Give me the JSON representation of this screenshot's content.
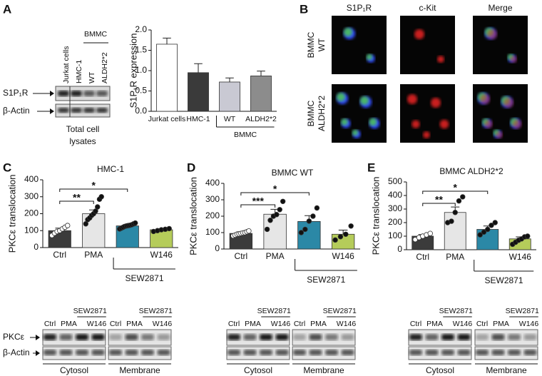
{
  "panel_letters": [
    "A",
    "B",
    "C",
    "D",
    "E"
  ],
  "panel_a": {
    "lanes": [
      "Jurkat cells",
      "HMC-1",
      "WT",
      "ALDH2*2"
    ],
    "group": "BMMC",
    "rows": [
      "S1P₁R",
      "β-Actin"
    ],
    "caption": [
      "Total cell",
      "lysates"
    ]
  },
  "panel_b": {
    "columns": [
      "S1P₁R",
      "c-Kit",
      "Merge"
    ],
    "rows": [
      [
        "BMMC",
        "WT"
      ],
      [
        "BMMC",
        "ALDH2*2"
      ]
    ]
  },
  "blots": {
    "lanes": [
      "Ctrl",
      "PMA",
      "W146"
    ],
    "group": "SEW2871",
    "rows": [
      "PKCε",
      "β-Actin"
    ],
    "fractions": [
      "Cytosol",
      "Membrane"
    ]
  },
  "chart_data": [
    {
      "type": "bar",
      "ylabel": "S1P₁R expression",
      "categories": [
        "Jurkat cells",
        "HMC-1",
        "WT",
        "ALDH2*2"
      ],
      "group_label": "BMMC",
      "values": [
        1.65,
        0.95,
        0.72,
        0.87
      ],
      "errors": [
        0.15,
        0.22,
        0.1,
        0.12
      ],
      "colors": [
        "#ffffff",
        "#3a3a3a",
        "#c9c9d3",
        "#8c8c8c"
      ],
      "ylim": [
        0,
        2
      ],
      "yticks": [
        {
          "value": 0,
          "label": "0.0"
        },
        {
          "value": 0.5,
          "label": "0.5"
        },
        {
          "value": 1,
          "label": "1.0"
        },
        {
          "value": 1.5,
          "label": "1.5"
        },
        {
          "value": 2,
          "label": "2.0"
        }
      ]
    },
    {
      "type": "bar",
      "title": "HMC-1",
      "ylabel": "PKCε translocation",
      "categories": [
        "Ctrl",
        "PMA",
        null,
        "W146"
      ],
      "group_label": "SEW2871",
      "values": [
        100,
        200,
        128,
        105
      ],
      "errors": [
        15,
        22,
        8,
        6
      ],
      "colors": [
        "#3b3b3b",
        "#e6e6e6",
        "#2b88a6",
        "#b5cc5a"
      ],
      "point_colors": [
        "#ffffff",
        "#111111",
        "#111111",
        "#111111"
      ],
      "points": [
        [
          72,
          85,
          95,
          100,
          110,
          120,
          130
        ],
        [
          140,
          165,
          175,
          190,
          200,
          215,
          240,
          285,
          300
        ],
        [
          110,
          115,
          120,
          125,
          128,
          130,
          132,
          135,
          140,
          145
        ],
        [
          95,
          100,
          105,
          108,
          112
        ]
      ],
      "significance": [
        "**",
        "*"
      ],
      "ylim": [
        0,
        400
      ],
      "yticks": [
        0,
        100,
        200,
        300,
        400
      ]
    },
    {
      "type": "bar",
      "title": "BMMC WT",
      "ylabel": "PKCε translocation",
      "categories": [
        "Ctrl",
        "PMA",
        null,
        "W146"
      ],
      "group_label": "SEW2871",
      "values": [
        95,
        212,
        168,
        90
      ],
      "errors": [
        10,
        30,
        35,
        25
      ],
      "colors": [
        "#3b3b3b",
        "#e6e6e6",
        "#2b88a6",
        "#b5cc5a"
      ],
      "point_colors": [
        "#ffffff",
        "#111111",
        "#111111",
        "#111111"
      ],
      "points": [
        [
          80,
          85,
          90,
          92,
          95,
          98,
          100,
          105,
          110
        ],
        [
          120,
          175,
          200,
          210,
          240,
          290
        ],
        [
          100,
          120,
          170,
          200,
          250
        ],
        [
          55,
          75,
          90,
          140
        ]
      ],
      "significance": [
        "***",
        "*"
      ],
      "ylim": [
        0,
        400
      ],
      "yticks": [
        0,
        100,
        200,
        300,
        400
      ]
    },
    {
      "type": "bar",
      "title": "BMMC ALDH2*2",
      "ylabel": "PKCε translocation",
      "categories": [
        "Ctrl",
        "PMA",
        null,
        "W146"
      ],
      "group_label": "SEW2871",
      "values": [
        100,
        275,
        150,
        80
      ],
      "errors": [
        12,
        40,
        25,
        15
      ],
      "colors": [
        "#3b3b3b",
        "#e6e6e6",
        "#2b88a6",
        "#b5cc5a"
      ],
      "point_colors": [
        "#ffffff",
        "#111111",
        "#111111",
        "#111111"
      ],
      "points": [
        [
          75,
          90,
          100,
          110,
          120
        ],
        [
          200,
          210,
          275,
          360,
          390
        ],
        [
          110,
          130,
          150,
          180,
          200
        ],
        [
          40,
          55,
          70,
          80,
          95,
          100
        ]
      ],
      "significance": [
        "**",
        "*"
      ],
      "ylim": [
        0,
        500
      ],
      "yticks": [
        0,
        100,
        200,
        300,
        400,
        500
      ]
    }
  ]
}
